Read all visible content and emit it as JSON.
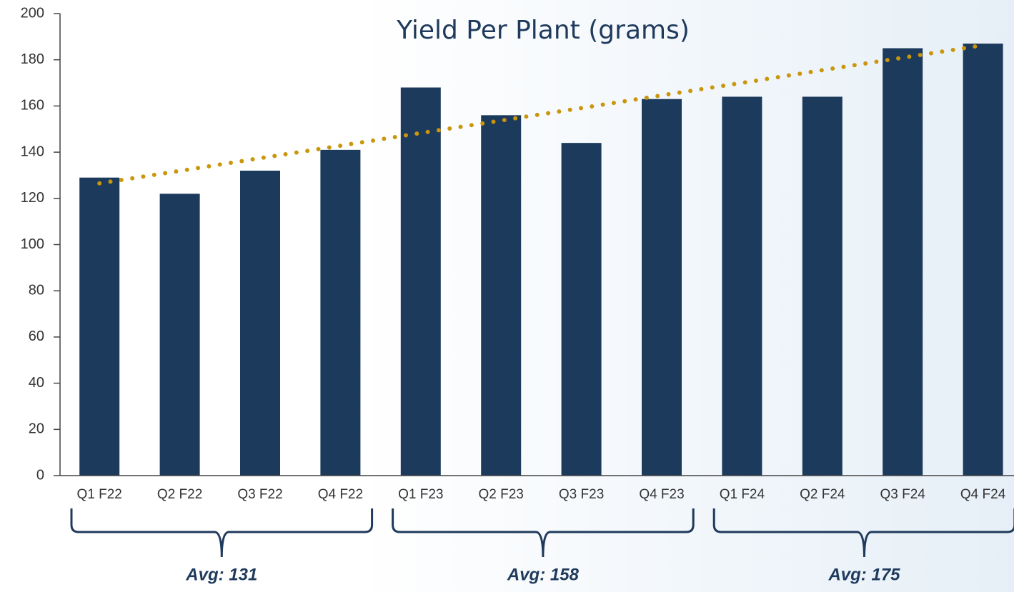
{
  "chart_data": {
    "type": "bar",
    "title": "Yield Per Plant (grams)",
    "categories": [
      "Q1 F22",
      "Q2 F22",
      "Q3 F22",
      "Q4 F22",
      "Q1 F23",
      "Q2 F23",
      "Q3 F23",
      "Q4 F23",
      "Q1 F24",
      "Q2 F24",
      "Q3 F24",
      "Q4 F24"
    ],
    "values": [
      129,
      122,
      132,
      141,
      168,
      156,
      144,
      163,
      164,
      164,
      185,
      187
    ],
    "color": "#1c3a5c",
    "trendline": {
      "color": "#c9960c",
      "values": [
        126.5,
        131.9,
        137.4,
        142.8,
        148.3,
        153.7,
        159.1,
        164.6,
        170.0,
        175.5,
        180.9,
        186.3
      ]
    },
    "groups": [
      "Avg: 131",
      "Avg: 158",
      "Avg: 175"
    ],
    "ylim": [
      0,
      200
    ],
    "yticks": [
      0,
      20,
      40,
      60,
      80,
      100,
      120,
      140,
      160,
      180,
      200
    ]
  }
}
